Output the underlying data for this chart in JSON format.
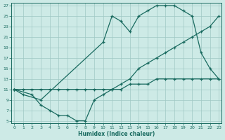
{
  "xlabel": "Humidex (Indice chaleur)",
  "bg_color": "#cdeae6",
  "grid_color": "#a0c8c4",
  "line_color": "#1a6b60",
  "xlim": [
    -0.3,
    23.3
  ],
  "ylim": [
    4.5,
    27.5
  ],
  "xticks": [
    0,
    1,
    2,
    3,
    4,
    5,
    6,
    7,
    8,
    9,
    10,
    11,
    12,
    13,
    14,
    15,
    16,
    17,
    18,
    19,
    20,
    21,
    22,
    23
  ],
  "yticks": [
    5,
    7,
    9,
    11,
    13,
    15,
    17,
    19,
    21,
    23,
    25,
    27
  ],
  "line1_x": [
    0,
    1,
    3,
    10,
    11,
    12,
    13,
    14,
    15,
    16,
    17,
    18,
    19,
    20,
    21,
    22,
    23
  ],
  "line1_y": [
    11,
    10,
    9,
    20,
    25,
    24,
    22,
    25,
    26,
    27,
    27,
    27,
    26,
    25,
    18,
    15,
    13
  ],
  "line2_x": [
    0,
    2,
    3,
    4,
    5,
    6,
    7,
    8,
    9,
    10,
    11,
    12,
    13,
    14,
    15,
    16,
    17,
    18,
    19,
    20,
    21,
    22,
    23
  ],
  "line2_y": [
    11,
    10,
    8,
    7,
    6,
    6,
    5,
    5,
    9,
    10,
    11,
    12,
    13,
    15,
    16,
    17,
    18,
    19,
    20,
    21,
    22,
    23,
    25
  ],
  "line3_x": [
    0,
    1,
    2,
    3,
    4,
    5,
    6,
    7,
    8,
    9,
    10,
    11,
    12,
    13,
    14,
    15,
    16,
    17,
    18,
    19,
    20,
    21,
    22,
    23
  ],
  "line3_y": [
    11,
    11,
    11,
    11,
    11,
    11,
    11,
    11,
    11,
    11,
    11,
    11,
    11,
    12,
    12,
    12,
    13,
    13,
    13,
    13,
    13,
    13,
    13,
    13
  ]
}
